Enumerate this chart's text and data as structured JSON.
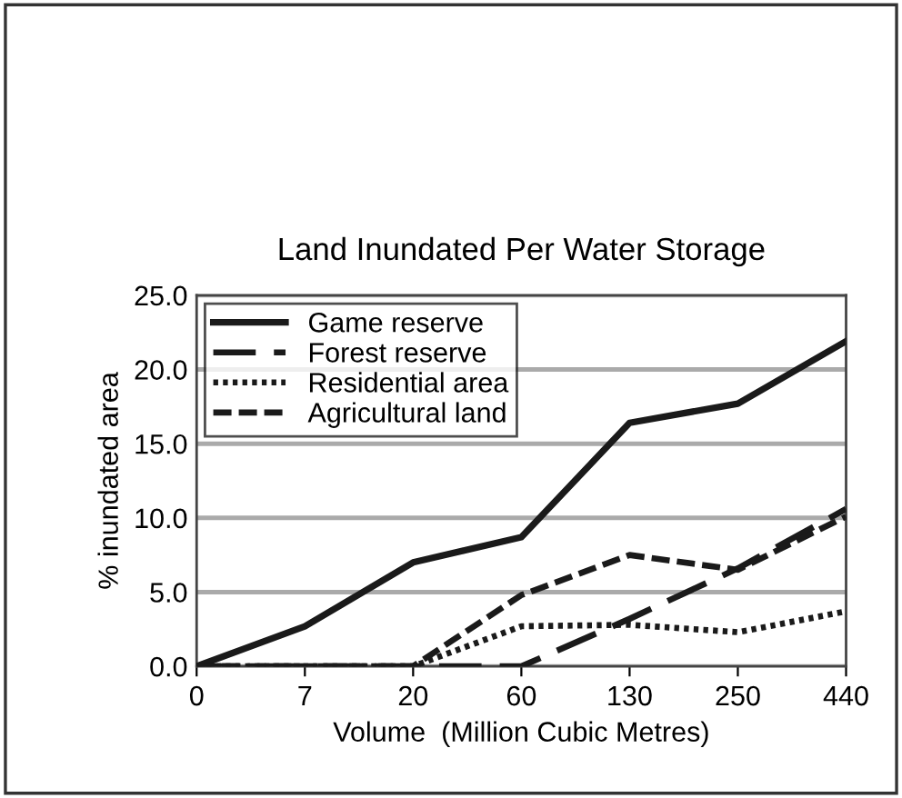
{
  "chart_data": {
    "type": "line",
    "title": "Land Inundated Per Water Storage",
    "xlabel": "Volume  (Million Cubic Metres)",
    "ylabel": "% inundated area",
    "categories": [
      "0",
      "7",
      "20",
      "60",
      "130",
      "250",
      "440"
    ],
    "series": [
      {
        "name": "Game reserve",
        "color": "#1a1a1a",
        "line_style": "solid",
        "values": [
          0,
          2.7,
          7.0,
          8.7,
          16.4,
          17.7,
          21.9
        ]
      },
      {
        "name": "Forest reserve",
        "color": "#1a1a1a",
        "line_style": "long dashed",
        "values": [
          0,
          0,
          0,
          0,
          3.2,
          6.6,
          10.6
        ]
      },
      {
        "name": "Residential area",
        "color": "#1a1a1a",
        "line_style": "dotted",
        "values": [
          0,
          0,
          0,
          2.7,
          2.8,
          2.3,
          3.7
        ]
      },
      {
        "name": "Agricultural land",
        "color": "#1a1a1a",
        "line_style": "dashed",
        "values": [
          0,
          0,
          0,
          4.8,
          7.5,
          6.5,
          10.1
        ]
      }
    ],
    "ylim": [
      0,
      25
    ],
    "yticks": [
      {
        "value": 0,
        "label": "0.0"
      },
      {
        "value": 5,
        "label": "5.0"
      },
      {
        "value": 10,
        "label": "10.0"
      },
      {
        "value": 15,
        "label": "15.0"
      },
      {
        "value": 20,
        "label": "20.0"
      },
      {
        "value": 25,
        "label": "25.0"
      }
    ],
    "grid": "y",
    "legend": "top left",
    "marker": "none"
  }
}
